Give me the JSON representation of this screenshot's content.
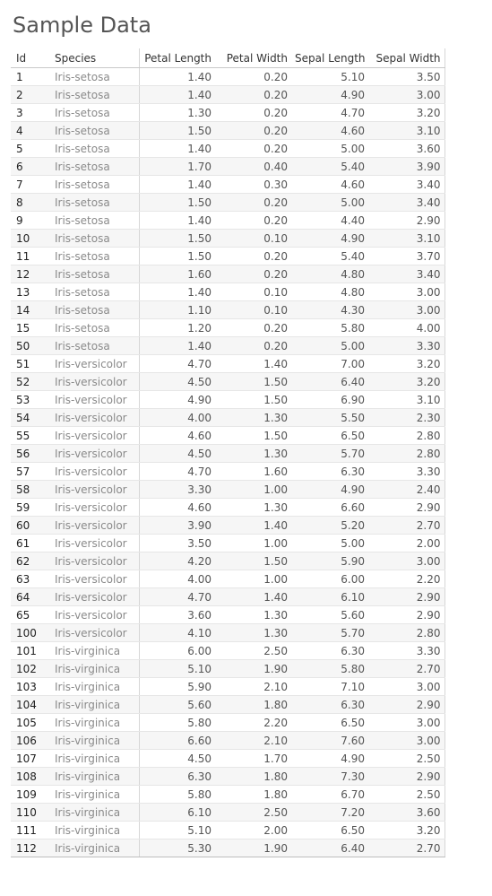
{
  "title": "Sample Data",
  "chart_data": {
    "type": "table",
    "title": "Sample Data",
    "columns": [
      "Id",
      "Species",
      "Petal Length",
      "Petal Width",
      "Sepal Length",
      "Sepal Width"
    ],
    "rows": [
      [
        "1",
        "Iris-setosa",
        "1.40",
        "0.20",
        "5.10",
        "3.50"
      ],
      [
        "2",
        "Iris-setosa",
        "1.40",
        "0.20",
        "4.90",
        "3.00"
      ],
      [
        "3",
        "Iris-setosa",
        "1.30",
        "0.20",
        "4.70",
        "3.20"
      ],
      [
        "4",
        "Iris-setosa",
        "1.50",
        "0.20",
        "4.60",
        "3.10"
      ],
      [
        "5",
        "Iris-setosa",
        "1.40",
        "0.20",
        "5.00",
        "3.60"
      ],
      [
        "6",
        "Iris-setosa",
        "1.70",
        "0.40",
        "5.40",
        "3.90"
      ],
      [
        "7",
        "Iris-setosa",
        "1.40",
        "0.30",
        "4.60",
        "3.40"
      ],
      [
        "8",
        "Iris-setosa",
        "1.50",
        "0.20",
        "5.00",
        "3.40"
      ],
      [
        "9",
        "Iris-setosa",
        "1.40",
        "0.20",
        "4.40",
        "2.90"
      ],
      [
        "10",
        "Iris-setosa",
        "1.50",
        "0.10",
        "4.90",
        "3.10"
      ],
      [
        "11",
        "Iris-setosa",
        "1.50",
        "0.20",
        "5.40",
        "3.70"
      ],
      [
        "12",
        "Iris-setosa",
        "1.60",
        "0.20",
        "4.80",
        "3.40"
      ],
      [
        "13",
        "Iris-setosa",
        "1.40",
        "0.10",
        "4.80",
        "3.00"
      ],
      [
        "14",
        "Iris-setosa",
        "1.10",
        "0.10",
        "4.30",
        "3.00"
      ],
      [
        "15",
        "Iris-setosa",
        "1.20",
        "0.20",
        "5.80",
        "4.00"
      ],
      [
        "50",
        "Iris-setosa",
        "1.40",
        "0.20",
        "5.00",
        "3.30"
      ],
      [
        "51",
        "Iris-versicolor",
        "4.70",
        "1.40",
        "7.00",
        "3.20"
      ],
      [
        "52",
        "Iris-versicolor",
        "4.50",
        "1.50",
        "6.40",
        "3.20"
      ],
      [
        "53",
        "Iris-versicolor",
        "4.90",
        "1.50",
        "6.90",
        "3.10"
      ],
      [
        "54",
        "Iris-versicolor",
        "4.00",
        "1.30",
        "5.50",
        "2.30"
      ],
      [
        "55",
        "Iris-versicolor",
        "4.60",
        "1.50",
        "6.50",
        "2.80"
      ],
      [
        "56",
        "Iris-versicolor",
        "4.50",
        "1.30",
        "5.70",
        "2.80"
      ],
      [
        "57",
        "Iris-versicolor",
        "4.70",
        "1.60",
        "6.30",
        "3.30"
      ],
      [
        "58",
        "Iris-versicolor",
        "3.30",
        "1.00",
        "4.90",
        "2.40"
      ],
      [
        "59",
        "Iris-versicolor",
        "4.60",
        "1.30",
        "6.60",
        "2.90"
      ],
      [
        "60",
        "Iris-versicolor",
        "3.90",
        "1.40",
        "5.20",
        "2.70"
      ],
      [
        "61",
        "Iris-versicolor",
        "3.50",
        "1.00",
        "5.00",
        "2.00"
      ],
      [
        "62",
        "Iris-versicolor",
        "4.20",
        "1.50",
        "5.90",
        "3.00"
      ],
      [
        "63",
        "Iris-versicolor",
        "4.00",
        "1.00",
        "6.00",
        "2.20"
      ],
      [
        "64",
        "Iris-versicolor",
        "4.70",
        "1.40",
        "6.10",
        "2.90"
      ],
      [
        "65",
        "Iris-versicolor",
        "3.60",
        "1.30",
        "5.60",
        "2.90"
      ],
      [
        "100",
        "Iris-versicolor",
        "4.10",
        "1.30",
        "5.70",
        "2.80"
      ],
      [
        "101",
        "Iris-virginica",
        "6.00",
        "2.50",
        "6.30",
        "3.30"
      ],
      [
        "102",
        "Iris-virginica",
        "5.10",
        "1.90",
        "5.80",
        "2.70"
      ],
      [
        "103",
        "Iris-virginica",
        "5.90",
        "2.10",
        "7.10",
        "3.00"
      ],
      [
        "104",
        "Iris-virginica",
        "5.60",
        "1.80",
        "6.30",
        "2.90"
      ],
      [
        "105",
        "Iris-virginica",
        "5.80",
        "2.20",
        "6.50",
        "3.00"
      ],
      [
        "106",
        "Iris-virginica",
        "6.60",
        "2.10",
        "7.60",
        "3.00"
      ],
      [
        "107",
        "Iris-virginica",
        "4.50",
        "1.70",
        "4.90",
        "2.50"
      ],
      [
        "108",
        "Iris-virginica",
        "6.30",
        "1.80",
        "7.30",
        "2.90"
      ],
      [
        "109",
        "Iris-virginica",
        "5.80",
        "1.80",
        "6.70",
        "2.50"
      ],
      [
        "110",
        "Iris-virginica",
        "6.10",
        "2.50",
        "7.20",
        "3.60"
      ],
      [
        "111",
        "Iris-virginica",
        "5.10",
        "2.00",
        "6.50",
        "3.20"
      ],
      [
        "112",
        "Iris-virginica",
        "5.30",
        "1.90",
        "6.40",
        "2.70"
      ]
    ]
  }
}
